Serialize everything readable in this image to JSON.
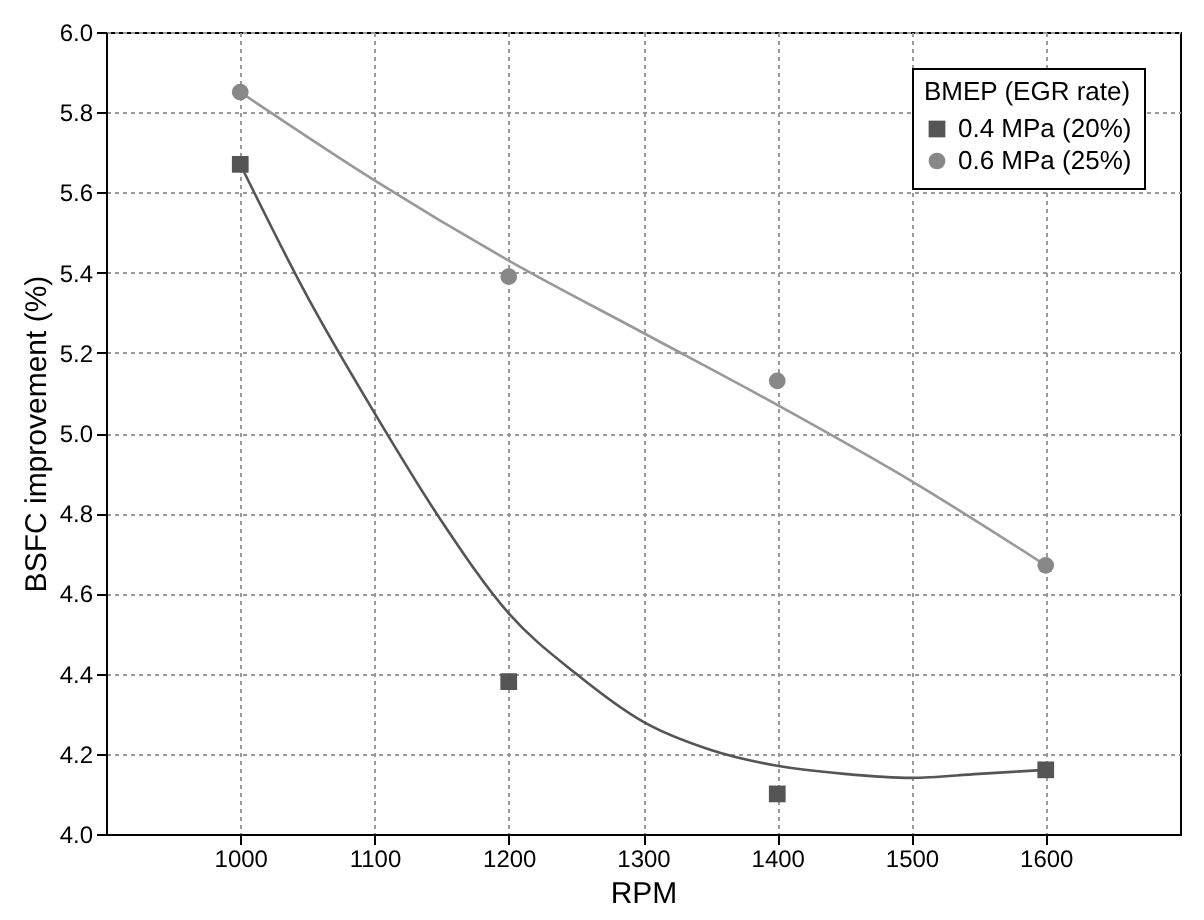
{
  "chart_data": {
    "type": "scatter",
    "xlabel": "RPM",
    "ylabel": "BSFC improvement (%)",
    "legend_title": "BMEP (EGR rate)",
    "xlim": [
      900,
      1700
    ],
    "xticks": [
      1000,
      1100,
      1200,
      1300,
      1400,
      1500,
      1600
    ],
    "ylim": [
      4.0,
      6.0
    ],
    "yticks": [
      {
        "value": 4.0,
        "label": "4.0"
      },
      {
        "value": 4.2,
        "label": "4.2"
      },
      {
        "value": 4.4,
        "label": "4.4"
      },
      {
        "value": 4.6,
        "label": "4.6"
      },
      {
        "value": 4.8,
        "label": "4.8"
      },
      {
        "value": 5.0,
        "label": "5.0"
      },
      {
        "value": 5.2,
        "label": "5.2"
      },
      {
        "value": 5.4,
        "label": "5.4"
      },
      {
        "value": 5.6,
        "label": "5.6"
      },
      {
        "value": 5.8,
        "label": "5.8"
      },
      {
        "value": 6.0,
        "label": "6.0"
      }
    ],
    "grid": true,
    "legend": "top right",
    "series": [
      {
        "name": "0.4 MPa (20%)",
        "marker": "square",
        "color": "#555555",
        "x": [
          1000,
          1200,
          1400,
          1600
        ],
        "values": [
          5.67,
          4.38,
          4.1,
          4.16
        ]
      },
      {
        "name": "0.6 MPa (25%)",
        "marker": "circle",
        "color": "#888888",
        "x": [
          1000,
          1200,
          1400,
          1600
        ],
        "values": [
          5.85,
          5.39,
          5.13,
          4.67
        ]
      },
      {
        "type": "line",
        "color": "#555555",
        "line_style": "solid",
        "x": [
          1000,
          1050,
          1100,
          1150,
          1200,
          1250,
          1300,
          1350,
          1400,
          1450,
          1500,
          1550,
          1600
        ],
        "values": [
          5.67,
          5.34,
          5.05,
          4.78,
          4.55,
          4.4,
          4.28,
          4.21,
          4.17,
          4.15,
          4.14,
          4.15,
          4.16
        ]
      },
      {
        "type": "line",
        "color": "#999999",
        "line_style": "solid",
        "x": [
          1000,
          1100,
          1200,
          1300,
          1400,
          1500,
          1600
        ],
        "values": [
          5.85,
          5.63,
          5.43,
          5.25,
          5.07,
          4.88,
          4.67
        ]
      }
    ]
  }
}
